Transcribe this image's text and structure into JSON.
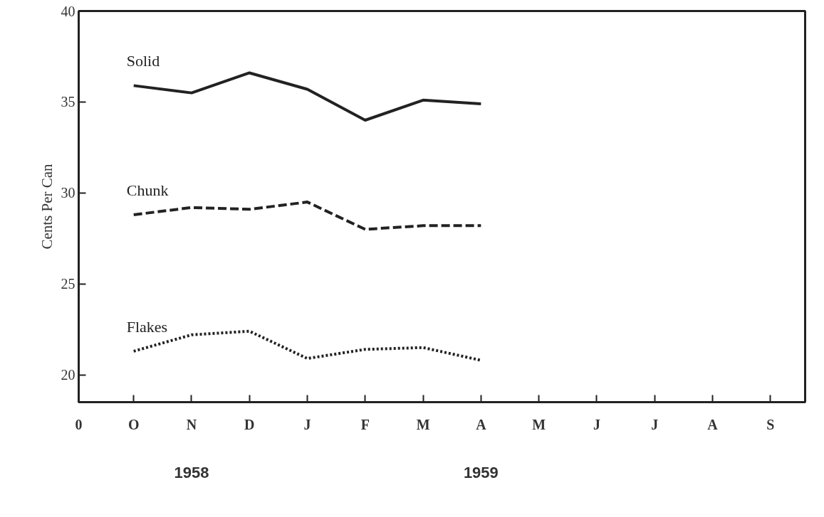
{
  "chart_data": {
    "type": "line",
    "ylabel": "Cents Per Can",
    "categories": [
      "O",
      "N",
      "D",
      "J",
      "F",
      "M",
      "A",
      "M",
      "J",
      "J",
      "A",
      "S"
    ],
    "ylim": [
      18.5,
      40
    ],
    "yticks": [
      20,
      25,
      30,
      35,
      40
    ],
    "grid": false,
    "series": [
      {
        "name": "Solid",
        "color": "#222222",
        "line_style": "solid",
        "values": [
          35.9,
          35.5,
          36.6,
          35.7,
          34.0,
          35.1,
          34.9,
          null,
          null,
          null,
          null,
          null
        ]
      },
      {
        "name": "Chunk",
        "color": "#222222",
        "line_style": "dashed",
        "values": [
          28.8,
          29.2,
          29.1,
          29.5,
          28.0,
          28.2,
          28.2,
          null,
          null,
          null,
          null,
          null
        ]
      },
      {
        "name": "Flakes",
        "color": "#222222",
        "line_style": "dotted",
        "values": [
          21.3,
          22.2,
          22.4,
          20.9,
          21.4,
          21.5,
          20.8,
          null,
          null,
          null,
          null,
          null
        ]
      }
    ],
    "annotations": [
      "1958",
      "1959",
      "0"
    ]
  }
}
